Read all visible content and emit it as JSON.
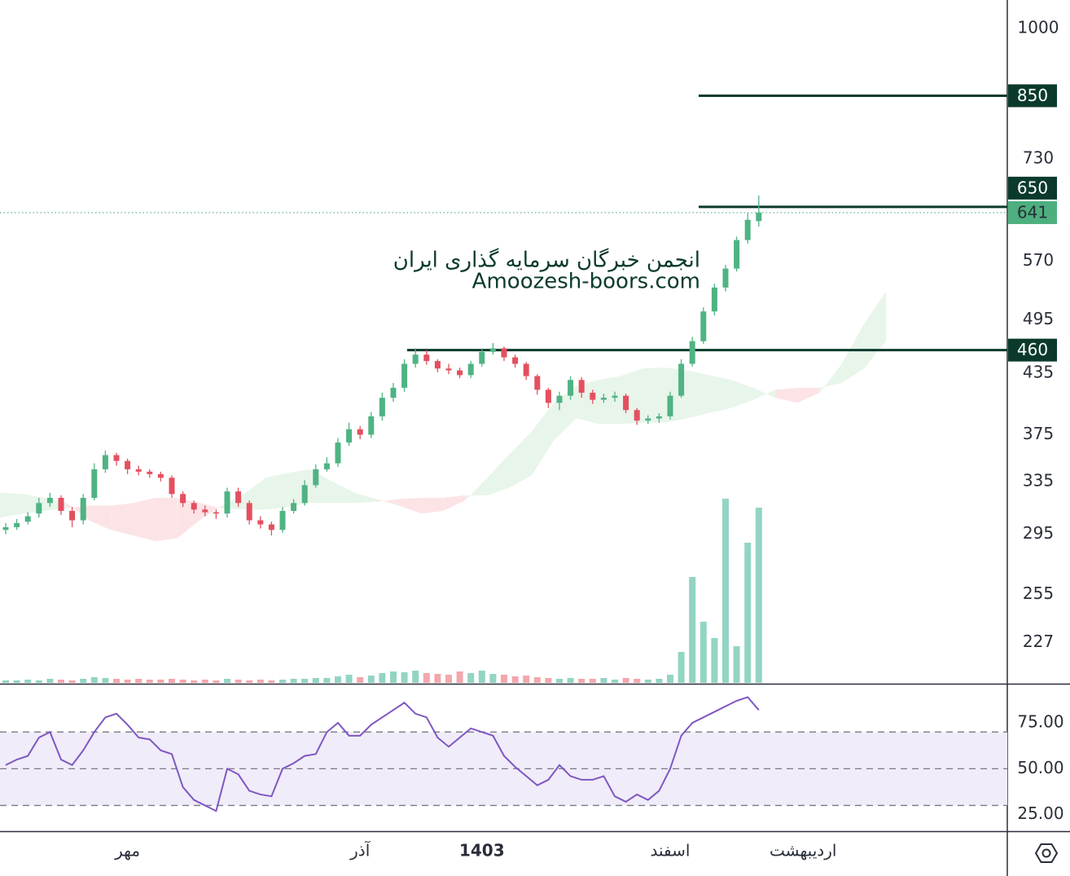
{
  "chart_data": {
    "type": "candlestick",
    "log_scale": true,
    "categories": [
      null,
      null,
      null,
      null,
      null,
      null,
      null,
      null,
      null,
      null,
      null,
      "مهر",
      null,
      null,
      null,
      null,
      null,
      null,
      null,
      null,
      null,
      null,
      null,
      null,
      null,
      null,
      null,
      null,
      null,
      null,
      null,
      null,
      "آذر",
      null,
      null,
      null,
      null,
      null,
      null,
      null,
      null,
      null,
      null,
      "1403",
      null,
      null,
      null,
      null,
      null,
      null,
      null,
      null,
      null,
      null,
      null,
      null,
      null,
      null,
      null,
      null,
      "اسفند",
      null,
      null,
      null,
      null,
      null,
      null,
      null,
      null,
      null,
      null,
      null,
      "اردیبهشت"
    ],
    "open": [
      298,
      300,
      304,
      310,
      318,
      322,
      312,
      305,
      322,
      345,
      357,
      352,
      345,
      343,
      341,
      338,
      325,
      318,
      313,
      311,
      310,
      327,
      318,
      305,
      302,
      298,
      312,
      318,
      332,
      345,
      350,
      368,
      380,
      375,
      392,
      410,
      420,
      445,
      455,
      448,
      440,
      438,
      433,
      445,
      458,
      462,
      452,
      445,
      432,
      418,
      405,
      412,
      428,
      415,
      408,
      410,
      412,
      398,
      388,
      390,
      392,
      412,
      445,
      470,
      505,
      535,
      560,
      600,
      628,
      null,
      null,
      null,
      null
    ],
    "high": [
      303,
      306,
      311,
      322,
      326,
      324,
      315,
      325,
      350,
      361,
      359,
      354,
      348,
      345,
      343,
      340,
      327,
      320,
      316,
      313,
      330,
      330,
      320,
      308,
      304,
      315,
      321,
      336,
      349,
      355,
      372,
      386,
      383,
      396,
      415,
      425,
      450,
      462,
      460,
      450,
      445,
      441,
      448,
      462,
      468,
      464,
      455,
      447,
      434,
      420,
      416,
      432,
      431,
      418,
      414,
      416,
      414,
      400,
      393,
      395,
      416,
      450,
      475,
      510,
      540,
      565,
      605,
      640,
      668,
      null,
      null,
      null,
      null
    ],
    "low": [
      295,
      298,
      302,
      307,
      315,
      309,
      300,
      302,
      320,
      342,
      348,
      341,
      340,
      338,
      335,
      322,
      315,
      310,
      308,
      306,
      307,
      315,
      302,
      299,
      294,
      296,
      310,
      316,
      330,
      343,
      347,
      365,
      371,
      372,
      388,
      406,
      416,
      441,
      444,
      436,
      434,
      430,
      430,
      442,
      455,
      448,
      441,
      428,
      413,
      400,
      398,
      408,
      410,
      404,
      405,
      406,
      395,
      384,
      385,
      386,
      389,
      410,
      442,
      467,
      500,
      530,
      556,
      595,
      620,
      null,
      null,
      null,
      null
    ],
    "close": [
      300,
      303,
      308,
      318,
      322,
      312,
      305,
      322,
      345,
      357,
      352,
      345,
      343,
      341,
      338,
      325,
      318,
      313,
      311,
      310,
      327,
      318,
      305,
      302,
      298,
      312,
      318,
      332,
      345,
      350,
      368,
      380,
      375,
      392,
      410,
      420,
      445,
      455,
      448,
      440,
      438,
      433,
      445,
      458,
      462,
      452,
      445,
      432,
      418,
      405,
      412,
      428,
      415,
      408,
      410,
      412,
      398,
      388,
      390,
      392,
      412,
      445,
      470,
      505,
      535,
      560,
      600,
      630,
      641,
      null,
      null,
      null,
      null
    ],
    "volume": [
      3,
      3,
      4,
      3,
      5,
      4,
      3,
      5,
      7,
      6,
      5,
      4,
      5,
      4,
      4,
      5,
      4,
      3,
      4,
      3,
      5,
      4,
      3,
      4,
      3,
      4,
      5,
      5,
      6,
      6,
      8,
      10,
      7,
      9,
      12,
      14,
      13,
      15,
      12,
      11,
      10,
      14,
      12,
      15,
      11,
      10,
      8,
      9,
      7,
      6,
      5,
      6,
      5,
      5,
      6,
      4,
      6,
      5,
      4,
      5,
      10,
      38,
      130,
      75,
      55,
      226,
      45,
      172,
      215,
      null,
      null,
      null,
      null
    ],
    "ylim": [
      206,
      1071
    ],
    "yticks": [
      1000,
      730,
      570,
      495,
      435,
      375,
      335,
      295,
      255,
      227
    ],
    "levels": [
      850,
      650,
      460
    ],
    "last_price": 641,
    "up_color": "#4fb384",
    "down_color": "#e3505f",
    "volume_up_color": "#93d4c4",
    "volume_down_color": "#f3a7ad",
    "level_color": "#0b3a2c",
    "last_price_color": "#4caf7d",
    "cloud": {
      "span_a": [
        326,
        325,
        322,
        318,
        305,
        298,
        294,
        290,
        292,
        305,
        316,
        325,
        338,
        342,
        345,
        335,
        326,
        321,
        316,
        310,
        312,
        320,
        338,
        358,
        378,
        405,
        422,
        428,
        432,
        440,
        441,
        438,
        433,
        428,
        420,
        410,
        405,
        415,
        445,
        490,
        530
      ],
      "span_b": [
        307,
        310,
        312,
        314,
        316,
        316,
        318,
        322,
        322,
        318,
        314,
        313,
        313,
        315,
        318,
        318,
        318,
        319,
        321,
        322,
        322,
        324,
        324,
        330,
        340,
        370,
        390,
        385,
        385,
        386,
        386,
        390,
        395,
        400,
        408,
        418,
        420,
        420,
        425,
        440,
        470
      ],
      "up_color": "#e8f5ea",
      "down_color": "#fce4e6"
    },
    "watermark": [
      "انجمن خبرگان سرمایه گذاری ایران",
      "Amoozesh-boors.com"
    ],
    "rsi": {
      "values": [
        52,
        55,
        57,
        67,
        70,
        55,
        52,
        60,
        70,
        78,
        80,
        74,
        67,
        66,
        60,
        58,
        40,
        33,
        30,
        27,
        50,
        47,
        38,
        36,
        35,
        50,
        53,
        57,
        58,
        70,
        75,
        68,
        68,
        74,
        78,
        82,
        86,
        80,
        78,
        67,
        62,
        67,
        72,
        70,
        68,
        57,
        51,
        46,
        41,
        44,
        52,
        46,
        44,
        44,
        46,
        35,
        32,
        36,
        33,
        38,
        50,
        68,
        75,
        78,
        81,
        84,
        87,
        89,
        82,
        null,
        null,
        null,
        null
      ],
      "ylim": [
        16,
        95
      ],
      "yticks": [
        {
          "value": 75,
          "label": "75.00"
        },
        {
          "value": 50,
          "label": "50.00"
        },
        {
          "value": 25,
          "label": "25.00"
        }
      ],
      "levels": [
        70,
        50,
        30
      ],
      "color": "#7e57c2",
      "band_color": "#f0ecf9"
    }
  }
}
